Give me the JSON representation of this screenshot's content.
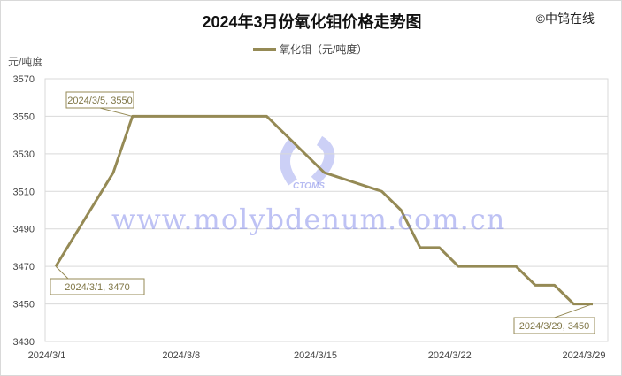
{
  "header": {
    "title": "2024年3月份氧化钼价格走势图",
    "copyright": "©中钨在线",
    "watermark": "www.molybdenum.com.cn",
    "logo_text": "CTOMS"
  },
  "chart_data": {
    "type": "line",
    "title": "2024年3月份氧化钼价格走势图",
    "ylabel": "元/吨度",
    "ylim": [
      3430,
      3570
    ],
    "yticks": [
      3430,
      3450,
      3470,
      3490,
      3510,
      3530,
      3550,
      3570
    ],
    "xlim": [
      "2024/3/1",
      "2024/3/29"
    ],
    "xticks": [
      "2024/3/1",
      "2024/3/8",
      "2024/3/15",
      "2024/3/22",
      "2024/3/29"
    ],
    "grid": true,
    "legend_position": "top",
    "color": "#958a55",
    "series": [
      {
        "name": "氧化钼（元/吨度）",
        "x": [
          1,
          4,
          5,
          12,
          15,
          18,
          19,
          20,
          21,
          22,
          25,
          26,
          27,
          28,
          29
        ],
        "values": [
          3470,
          3520,
          3550,
          3550,
          3520,
          3510,
          3500,
          3480,
          3480,
          3470,
          3470,
          3460,
          3460,
          3450,
          3450
        ]
      }
    ],
    "annotations": [
      {
        "text": "2024/3/5, 3550",
        "day": 5,
        "value": 3550
      },
      {
        "text": "2024/3/1, 3470",
        "day": 1,
        "value": 3470
      },
      {
        "text": "2024/3/29, 3450",
        "day": 29,
        "value": 3450
      }
    ]
  }
}
